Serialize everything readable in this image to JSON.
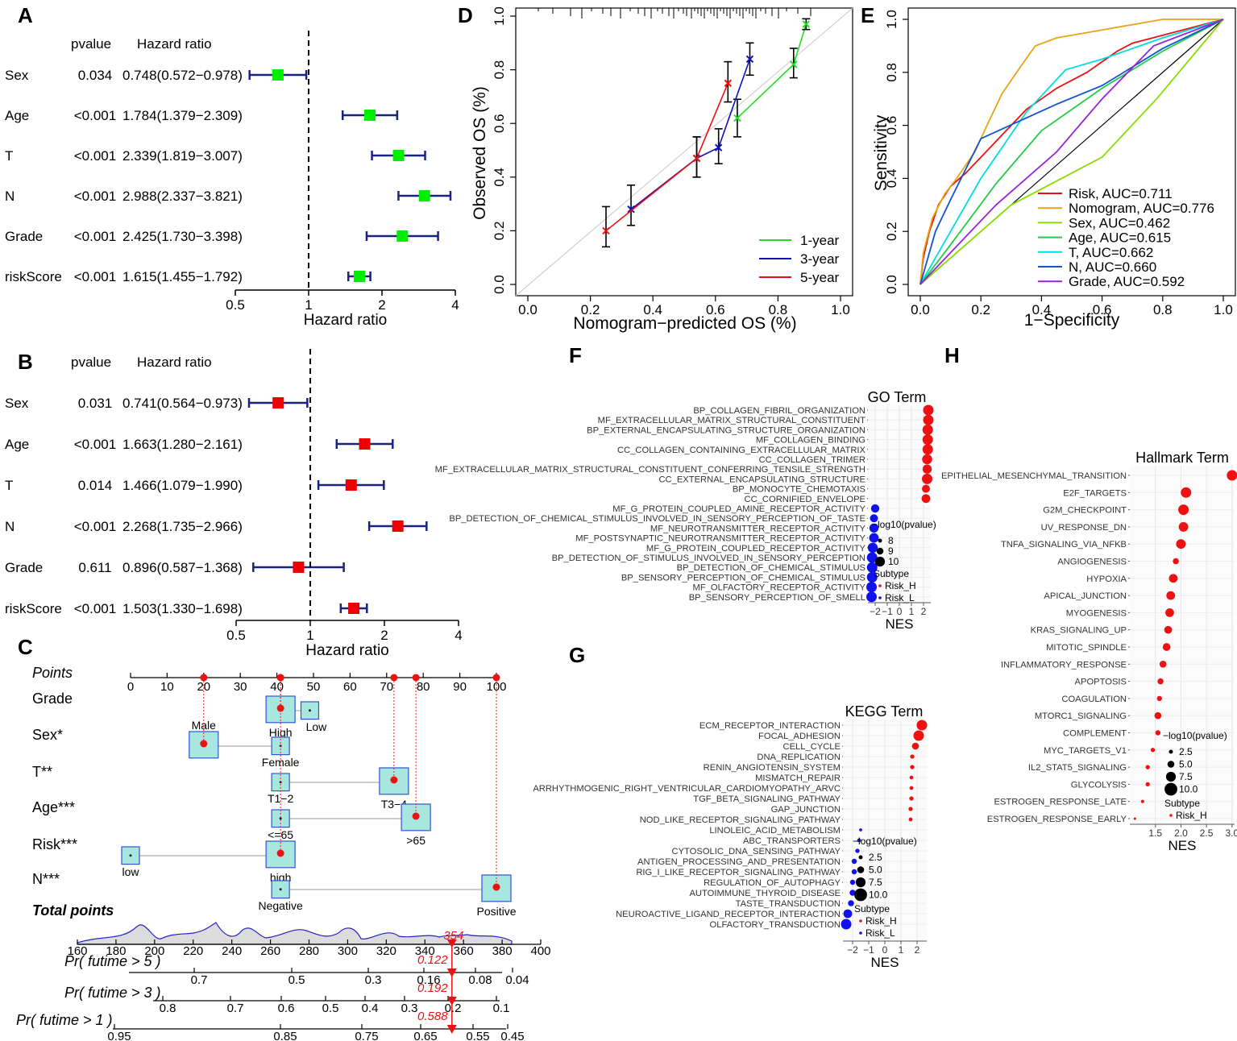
{
  "panel_letters": [
    "A",
    "B",
    "C",
    "D",
    "E",
    "F",
    "G",
    "H"
  ],
  "chart_data": [
    {
      "id": "A",
      "type": "forest",
      "col_headers": {
        "pvalue": "pvalue",
        "hr": "Hazard ratio"
      },
      "xlabel": "Hazard ratio",
      "ticks": [
        0.5,
        1,
        2,
        4
      ],
      "tick_labels": [
        "0.5",
        "1",
        "2",
        "4"
      ],
      "xlim": [
        0.5,
        4
      ],
      "box_color": "#00ee00",
      "ci_color": "#1a237e",
      "rows": [
        {
          "label": "Sex",
          "p": "0.034",
          "text": "0.748(0.572−0.978)",
          "hr": 0.748,
          "lo": 0.572,
          "hi": 0.978
        },
        {
          "label": "Age",
          "p": "<0.001",
          "text": "1.784(1.379−2.309)",
          "hr": 1.784,
          "lo": 1.379,
          "hi": 2.309
        },
        {
          "label": "T",
          "p": "<0.001",
          "text": "2.339(1.819−3.007)",
          "hr": 2.339,
          "lo": 1.819,
          "hi": 3.007
        },
        {
          "label": "N",
          "p": "<0.001",
          "text": "2.988(2.337−3.821)",
          "hr": 2.988,
          "lo": 2.337,
          "hi": 3.821
        },
        {
          "label": "Grade",
          "p": "<0.001",
          "text": "2.425(1.730−3.398)",
          "hr": 2.425,
          "lo": 1.73,
          "hi": 3.398
        },
        {
          "label": "riskScore",
          "p": "<0.001",
          "text": "1.615(1.455−1.792)",
          "hr": 1.615,
          "lo": 1.455,
          "hi": 1.792
        }
      ]
    },
    {
      "id": "B",
      "type": "forest",
      "col_headers": {
        "pvalue": "pvalue",
        "hr": "Hazard ratio"
      },
      "xlabel": "Hazard ratio",
      "ticks": [
        0.5,
        1,
        2,
        4
      ],
      "tick_labels": [
        "0.5",
        "1",
        "2",
        "4"
      ],
      "xlim": [
        0.5,
        4
      ],
      "box_color": "#ee0000",
      "ci_color": "#1a237e",
      "rows": [
        {
          "label": "Sex",
          "p": "0.031",
          "text": "0.741(0.564−0.973)",
          "hr": 0.741,
          "lo": 0.564,
          "hi": 0.973
        },
        {
          "label": "Age",
          "p": "<0.001",
          "text": "1.663(1.280−2.161)",
          "hr": 1.663,
          "lo": 1.28,
          "hi": 2.161
        },
        {
          "label": "T",
          "p": "0.014",
          "text": "1.466(1.079−1.990)",
          "hr": 1.466,
          "lo": 1.079,
          "hi": 1.99
        },
        {
          "label": "N",
          "p": "<0.001",
          "text": "2.268(1.735−2.966)",
          "hr": 2.268,
          "lo": 1.735,
          "hi": 2.966
        },
        {
          "label": "Grade",
          "p": "0.611",
          "text": "0.896(0.587−1.368)",
          "hr": 0.896,
          "lo": 0.587,
          "hi": 1.368
        },
        {
          "label": "riskScore",
          "p": "<0.001",
          "text": "1.503(1.330−1.698)",
          "hr": 1.503,
          "lo": 1.33,
          "hi": 1.698
        }
      ]
    },
    {
      "id": "C",
      "type": "nomogram",
      "points_label": "Points",
      "points_ticks": [
        0,
        10,
        20,
        30,
        40,
        50,
        60,
        70,
        80,
        90,
        100
      ],
      "variables": [
        {
          "name": "Grade",
          "levels": [
            {
              "label": "High",
              "points": 41
            },
            {
              "label": "Low",
              "points": 49
            }
          ],
          "selected_points": 41
        },
        {
          "name": "Sex*",
          "levels": [
            {
              "label": "Male",
              "points": 20
            },
            {
              "label": "Female",
              "points": 41
            }
          ],
          "selected_points": 20
        },
        {
          "name": "T**",
          "levels": [
            {
              "label": "T1−2",
              "points": 41
            },
            {
              "label": "T3−4",
              "points": 72
            }
          ],
          "selected_points": 72
        },
        {
          "name": "Age***",
          "levels": [
            {
              "label": "<=65",
              "points": 41
            },
            {
              "label": ">65",
              "points": 78
            }
          ],
          "selected_points": 78
        },
        {
          "name": "Risk***",
          "levels": [
            {
              "label": "low",
              "points": 0
            },
            {
              "label": "high",
              "points": 41
            }
          ],
          "selected_points": 41
        },
        {
          "name": "N***",
          "levels": [
            {
              "label": "Negative",
              "points": 41
            },
            {
              "label": "Positive",
              "points": 100
            }
          ],
          "selected_points": 100
        }
      ],
      "total_points_label": "Total points",
      "total_ticks": [
        160,
        180,
        200,
        220,
        240,
        260,
        280,
        300,
        320,
        340,
        360,
        380,
        400
      ],
      "total_value": "354",
      "prob_rows": [
        {
          "label": "Pr( futime > 5 )",
          "value": "0.122",
          "ticks": [
            "0.7",
            "0.5",
            "0.3",
            "0.16",
            "0.08",
            "0.04"
          ]
        },
        {
          "label": "Pr( futime > 3 )",
          "value": "0.192",
          "ticks": [
            "0.8",
            "0.7",
            "0.6",
            "0.5",
            "0.4",
            "0.3",
            "0.2",
            "0.1"
          ]
        },
        {
          "label": "Pr( futime > 1 )",
          "value": "0.588",
          "ticks": [
            "0.95",
            "0.85",
            "0.75",
            "0.65",
            "0.55",
            "0.45"
          ]
        }
      ]
    },
    {
      "id": "D",
      "type": "line",
      "title": "",
      "xlabel": "Nomogram−predicted OS (%)",
      "ylabel": "Observed OS (%)",
      "xlim": [
        0,
        1
      ],
      "ylim": [
        0,
        1
      ],
      "x_ticks": [
        "0.0",
        "0.2",
        "0.4",
        "0.6",
        "0.8",
        "1.0"
      ],
      "y_ticks": [
        "0.0",
        "0.2",
        "0.4",
        "0.6",
        "0.8",
        "1.0"
      ],
      "series": [
        {
          "name": "1-year",
          "color": "#22dd22",
          "points": [
            [
              0.67,
              0.62,
              0.55,
              0.69
            ],
            [
              0.85,
              0.82,
              0.77,
              0.88
            ],
            [
              0.89,
              0.97,
              0.95,
              0.99
            ]
          ]
        },
        {
          "name": "3-year",
          "color": "#1111bb",
          "points": [
            [
              0.33,
              0.28,
              0.22,
              0.37
            ],
            [
              0.54,
              0.47,
              0.4,
              0.55
            ],
            [
              0.61,
              0.51,
              0.45,
              0.58
            ],
            [
              0.71,
              0.84,
              0.78,
              0.9
            ]
          ]
        },
        {
          "name": "5-year",
          "color": "#ee1111",
          "points": [
            [
              0.25,
              0.2,
              0.14,
              0.29
            ],
            [
              0.54,
              0.47,
              0.4,
              0.55
            ],
            [
              0.64,
              0.75,
              0.68,
              0.83
            ]
          ]
        }
      ]
    },
    {
      "id": "E",
      "type": "line",
      "xlabel": "1−Specificity",
      "ylabel": "Sensitivity",
      "xlim": [
        0,
        1
      ],
      "ylim": [
        0,
        1
      ],
      "x_ticks": [
        "0.0",
        "0.2",
        "0.4",
        "0.6",
        "0.8",
        "1.0"
      ],
      "y_ticks": [
        "0.0",
        "0.2",
        "0.4",
        "0.6",
        "0.8",
        "1.0"
      ],
      "series": [
        {
          "name": "Risk, AUC=0.711",
          "color": "#ee1111"
        },
        {
          "name": "Nomogram, AUC=0.776",
          "color": "#e8a317"
        },
        {
          "name": "Sex, AUC=0.462",
          "color": "#88dd00"
        },
        {
          "name": "Age, AUC=0.615",
          "color": "#22cc44"
        },
        {
          "name": "T, AUC=0.662",
          "color": "#00dddd"
        },
        {
          "name": "N, AUC=0.660",
          "color": "#1155cc"
        },
        {
          "name": "Grade, AUC=0.592",
          "color": "#9922dd"
        }
      ]
    },
    {
      "id": "F",
      "type": "scatter",
      "title": "GO Term",
      "xlabel": "NES",
      "x_ticks": [
        "−2",
        "−1",
        "0",
        "1",
        "2"
      ],
      "xlim": [
        -2.6,
        2.6
      ],
      "size_legend_title": "−log10(pvalue)",
      "size_legend": [
        "8",
        "9",
        "10"
      ],
      "subtype_title": "Subtype",
      "subtypes": [
        "Risk_H",
        "Risk_L"
      ],
      "terms": [
        {
          "label": "BP_COLLAGEN_FIBRIL_ORGANIZATION",
          "nes": 2.4,
          "size": 10,
          "group": "H"
        },
        {
          "label": "MF_EXTRACELLULAR_MATRIX_STRUCTURAL_CONSTITUENT",
          "nes": 2.4,
          "size": 10,
          "group": "H"
        },
        {
          "label": "BP_EXTERNAL_ENCAPSULATING_STRUCTURE_ORGANIZATION",
          "nes": 2.35,
          "size": 10,
          "group": "H"
        },
        {
          "label": "MF_COLLAGEN_BINDING",
          "nes": 2.35,
          "size": 10,
          "group": "H"
        },
        {
          "label": "CC_COLLAGEN_CONTAINING_EXTRACELLULAR_MATRIX",
          "nes": 2.35,
          "size": 10,
          "group": "H"
        },
        {
          "label": "CC_COLLAGEN_TRIMER",
          "nes": 2.3,
          "size": 9.5,
          "group": "H"
        },
        {
          "label": "MF_EXTRACELLULAR_MATRIX_STRUCTURAL_CONSTITUENT_CONFERRING_TENSILE_STRENGTH",
          "nes": 2.3,
          "size": 8.5,
          "group": "H"
        },
        {
          "label": "CC_EXTERNAL_ENCAPSULATING_STRUCTURE",
          "nes": 2.3,
          "size": 10,
          "group": "H"
        },
        {
          "label": "BP_MONOCYTE_CHEMOTAXIS",
          "nes": 2.2,
          "size": 7.2,
          "group": "H"
        },
        {
          "label": "CC_CORNIFIED_ENVELOPE",
          "nes": 2.2,
          "size": 8,
          "group": "H"
        },
        {
          "label": "MF_G_PROTEIN_COUPLED_AMINE_RECEPTOR_ACTIVITY",
          "nes": -2.0,
          "size": 7.6,
          "group": "L"
        },
        {
          "label": "BP_DETECTION_OF_CHEMICAL_STIMULUS_INVOLVED_IN_SENSORY_PERCEPTION_OF_TASTE",
          "nes": -2.1,
          "size": 7.2,
          "group": "L"
        },
        {
          "label": "MF_NEUROTRANSMITTER_RECEPTOR_ACTIVITY",
          "nes": -2.1,
          "size": 8.5,
          "group": "L"
        },
        {
          "label": "MF_POSTSYNAPTIC_NEUROTRANSMITTER_RECEPTOR_ACTIVITY",
          "nes": -2.1,
          "size": 9,
          "group": "L"
        },
        {
          "label": "MF_G_PROTEIN_COUPLED_RECEPTOR_ACTIVITY",
          "nes": -2.2,
          "size": 9.5,
          "group": "L"
        },
        {
          "label": "BP_DETECTION_OF_STIMULUS_INVOLVED_IN_SENSORY_PERCEPTION",
          "nes": -2.25,
          "size": 10,
          "group": "L"
        },
        {
          "label": "BP_DETECTION_OF_CHEMICAL_STIMULUS",
          "nes": -2.25,
          "size": 10,
          "group": "L"
        },
        {
          "label": "BP_SENSORY_PERCEPTION_OF_CHEMICAL_STIMULUS",
          "nes": -2.25,
          "size": 10,
          "group": "L"
        },
        {
          "label": "MF_OLFACTORY_RECEPTOR_ACTIVITY",
          "nes": -2.3,
          "size": 10,
          "group": "L"
        },
        {
          "label": "BP_SENSORY_PERCEPTION_OF_SMELL",
          "nes": -2.3,
          "size": 10,
          "group": "L"
        }
      ]
    },
    {
      "id": "G",
      "type": "scatter",
      "title": "KEGG Term",
      "xlabel": "NES",
      "x_ticks": [
        "−2",
        "−1",
        "0",
        "1",
        "2"
      ],
      "xlim": [
        -2.6,
        2.6
      ],
      "size_legend_title": "−log10(pvalue)",
      "size_legend": [
        "2.5",
        "5.0",
        "7.5",
        "10.0"
      ],
      "subtype_title": "Subtype",
      "subtypes": [
        "Risk_H",
        "Risk_L"
      ],
      "terms": [
        {
          "label": "ECM_RECEPTOR_INTERACTION",
          "nes": 2.3,
          "size": 10,
          "group": "H"
        },
        {
          "label": "FOCAL_ADHESION",
          "nes": 2.1,
          "size": 10,
          "group": "H"
        },
        {
          "label": "CELL_CYCLE",
          "nes": 1.9,
          "size": 6,
          "group": "H"
        },
        {
          "label": "DNA_REPLICATION",
          "nes": 1.7,
          "size": 3,
          "group": "H"
        },
        {
          "label": "RENIN_ANGIOTENSIN_SYSTEM",
          "nes": 1.7,
          "size": 3,
          "group": "H"
        },
        {
          "label": "MISMATCH_REPAIR",
          "nes": 1.65,
          "size": 2.5,
          "group": "H"
        },
        {
          "label": "ARRHYTHMOGENIC_RIGHT_VENTRICULAR_CARDIOMYOPATHY_ARVC",
          "nes": 1.65,
          "size": 2.5,
          "group": "H"
        },
        {
          "label": "TGF_BETA_SIGNALING_PATHWAY",
          "nes": 1.65,
          "size": 3,
          "group": "H"
        },
        {
          "label": "GAP_JUNCTION",
          "nes": 1.6,
          "size": 3,
          "group": "H"
        },
        {
          "label": "NOD_LIKE_RECEPTOR_SIGNALING_PATHWAY",
          "nes": 1.6,
          "size": 2.5,
          "group": "H"
        },
        {
          "label": "LINOLEIC_ACID_METABOLISM",
          "nes": -1.5,
          "size": 1.5,
          "group": "L"
        },
        {
          "label": "ABC_TRANSPORTERS",
          "nes": -1.6,
          "size": 2.5,
          "group": "L"
        },
        {
          "label": "CYTOSOLIC_DNA_SENSING_PATHWAY",
          "nes": -1.7,
          "size": 3,
          "group": "L"
        },
        {
          "label": "ANTIGEN_PROCESSING_AND_PRESENTATION",
          "nes": -1.9,
          "size": 4,
          "group": "L"
        },
        {
          "label": "RIG_I_LIKE_RECEPTOR_SIGNALING_PATHWAY",
          "nes": -1.9,
          "size": 4,
          "group": "L"
        },
        {
          "label": "REGULATION_OF_AUTOPHAGY",
          "nes": -2.0,
          "size": 4,
          "group": "L"
        },
        {
          "label": "AUTOIMMUNE_THYROID_DISEASE",
          "nes": -2.0,
          "size": 5,
          "group": "L"
        },
        {
          "label": "TASTE_TRANSDUCTION",
          "nes": -2.1,
          "size": 5,
          "group": "L"
        },
        {
          "label": "NEUROACTIVE_LIGAND_RECEPTOR_INTERACTION",
          "nes": -2.3,
          "size": 8,
          "group": "L"
        },
        {
          "label": "OLFACTORY_TRANSDUCTION",
          "nes": -2.4,
          "size": 10,
          "group": "L"
        }
      ]
    },
    {
      "id": "H",
      "type": "scatter",
      "title": "Hallmark Term",
      "xlabel": "NES",
      "x_ticks": [
        "1.5",
        "2.0",
        "2.5",
        "3.0"
      ],
      "xlim": [
        1.0,
        3.05
      ],
      "size_legend_title": "−log10(pvalue)",
      "size_legend": [
        "2.5",
        "5.0",
        "7.5",
        "10.0"
      ],
      "subtype_title": "Subtype",
      "subtypes": [
        "Risk_H"
      ],
      "terms": [
        {
          "label": "EPITHELIAL_MESENCHYMAL_TRANSITION",
          "nes": 3.0,
          "size": 10,
          "group": "H"
        },
        {
          "label": "E2F_TARGETS",
          "nes": 2.1,
          "size": 10,
          "group": "H"
        },
        {
          "label": "G2M_CHECKPOINT",
          "nes": 2.05,
          "size": 10,
          "group": "H"
        },
        {
          "label": "UV_RESPONSE_DN",
          "nes": 2.05,
          "size": 9,
          "group": "H"
        },
        {
          "label": "TNFA_SIGNALING_VIA_NFKB",
          "nes": 2.0,
          "size": 9,
          "group": "H"
        },
        {
          "label": "ANGIOGENESIS",
          "nes": 1.9,
          "size": 5,
          "group": "H"
        },
        {
          "label": "HYPOXIA",
          "nes": 1.85,
          "size": 8,
          "group": "H"
        },
        {
          "label": "APICAL_JUNCTION",
          "nes": 1.8,
          "size": 8,
          "group": "H"
        },
        {
          "label": "MYOGENESIS",
          "nes": 1.78,
          "size": 8,
          "group": "H"
        },
        {
          "label": "KRAS_SIGNALING_UP",
          "nes": 1.75,
          "size": 7,
          "group": "H"
        },
        {
          "label": "MITOTIC_SPINDLE",
          "nes": 1.72,
          "size": 7,
          "group": "H"
        },
        {
          "label": "INFLAMMATORY_RESPONSE",
          "nes": 1.65,
          "size": 6,
          "group": "H"
        },
        {
          "label": "APOPTOSIS",
          "nes": 1.6,
          "size": 5,
          "group": "H"
        },
        {
          "label": "COAGULATION",
          "nes": 1.58,
          "size": 4,
          "group": "H"
        },
        {
          "label": "MTORC1_SIGNALING",
          "nes": 1.55,
          "size": 6,
          "group": "H"
        },
        {
          "label": "COMPLEMENT",
          "nes": 1.55,
          "size": 4,
          "group": "H"
        },
        {
          "label": "MYC_TARGETS_V1",
          "nes": 1.45,
          "size": 3,
          "group": "H"
        },
        {
          "label": "IL2_STAT5_SIGNALING",
          "nes": 1.35,
          "size": 3,
          "group": "H"
        },
        {
          "label": "GLYCOLYSIS",
          "nes": 1.35,
          "size": 3,
          "group": "H"
        },
        {
          "label": "ESTROGEN_RESPONSE_LATE",
          "nes": 1.25,
          "size": 2,
          "group": "H"
        },
        {
          "label": "ESTROGEN_RESPONSE_EARLY",
          "nes": 1.1,
          "size": 1,
          "group": "H"
        }
      ]
    }
  ]
}
